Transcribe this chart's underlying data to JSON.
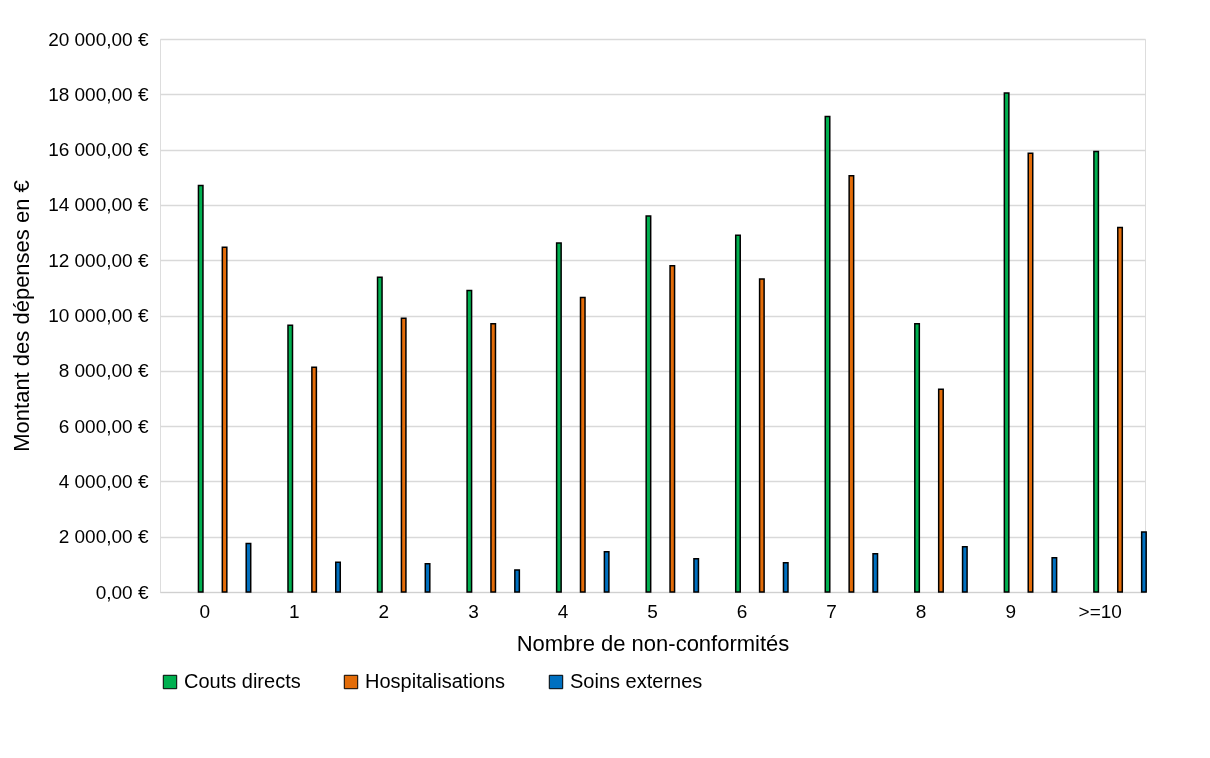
{
  "chart_data": {
    "type": "bar",
    "xlabel": "Nombre de non-conformités",
    "ylabel": "Montant des dépenses en €",
    "categories": [
      "0",
      "1",
      "2",
      "3",
      "4",
      "5",
      "6",
      "7",
      "8",
      "9",
      ">=10"
    ],
    "series": [
      {
        "name": "Couts directs",
        "color": "#00b050",
        "values": [
          14700,
          9650,
          11380,
          10900,
          12620,
          13600,
          12900,
          17200,
          9700,
          18050,
          15930
        ]
      },
      {
        "name": "Hospitalisations",
        "color": "#e36c09",
        "values": [
          12470,
          8130,
          9900,
          9700,
          10650,
          11800,
          11320,
          15050,
          7330,
          15870,
          13180
        ]
      },
      {
        "name": "Soins externes",
        "color": "#0070c0",
        "values": [
          1750,
          1080,
          1020,
          800,
          1460,
          1200,
          1060,
          1380,
          1640,
          1240,
          2170
        ]
      }
    ],
    "ylim": [
      0,
      20000
    ],
    "yticks": [
      {
        "value": 0,
        "label": "0,00 €"
      },
      {
        "value": 2000,
        "label": "2 000,00 €"
      },
      {
        "value": 4000,
        "label": "4 000,00 €"
      },
      {
        "value": 6000,
        "label": "6 000,00 €"
      },
      {
        "value": 8000,
        "label": "8 000,00 €"
      },
      {
        "value": 10000,
        "label": "10 000,00 €"
      },
      {
        "value": 12000,
        "label": "12 000,00 €"
      },
      {
        "value": 14000,
        "label": "14 000,00 €"
      },
      {
        "value": 16000,
        "label": "16 000,00 €"
      },
      {
        "value": 18000,
        "label": "18 000,00 €"
      },
      {
        "value": 20000,
        "label": "20 000,00 €"
      }
    ],
    "grid": "y",
    "legend": "bottom"
  }
}
